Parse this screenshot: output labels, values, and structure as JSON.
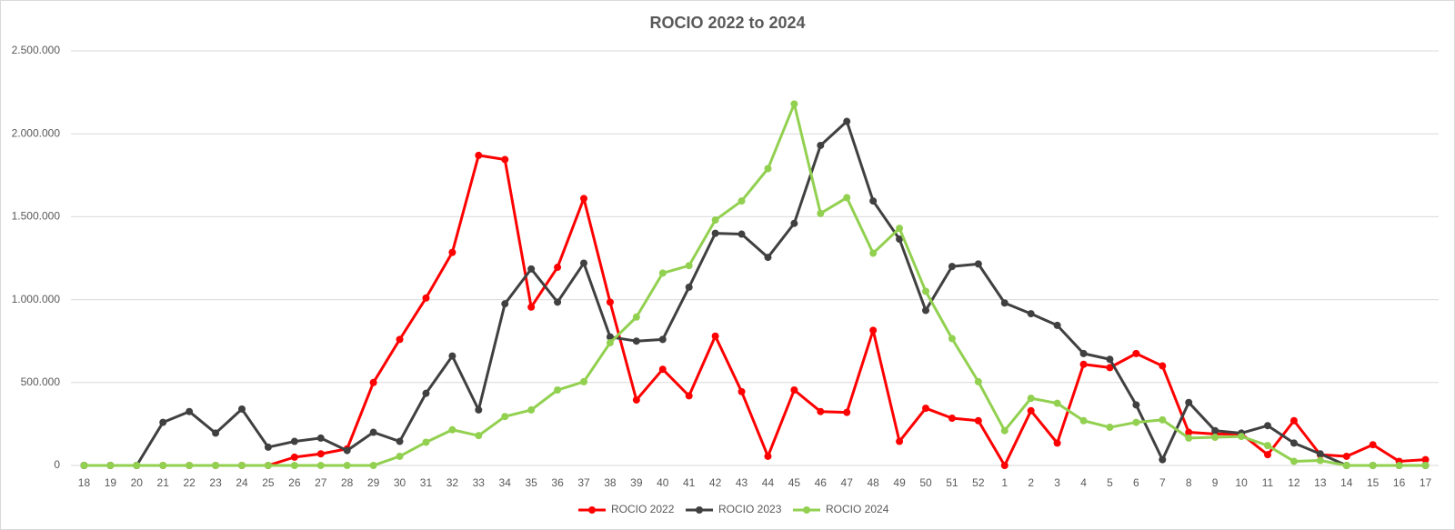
{
  "chart_data": {
    "type": "line",
    "title": "ROCIO 2022 to 2024",
    "categories": [
      "18",
      "19",
      "20",
      "21",
      "22",
      "23",
      "24",
      "25",
      "26",
      "27",
      "28",
      "29",
      "30",
      "31",
      "32",
      "33",
      "34",
      "35",
      "36",
      "37",
      "38",
      "39",
      "40",
      "41",
      "42",
      "43",
      "44",
      "45",
      "46",
      "47",
      "48",
      "49",
      "50",
      "51",
      "52",
      "1",
      "2",
      "3",
      "4",
      "5",
      "6",
      "7",
      "8",
      "9",
      "10",
      "11",
      "12",
      "13",
      "14",
      "15",
      "16",
      "17"
    ],
    "series": [
      {
        "name": "ROCIO 2022",
        "color": "#ff0000",
        "values": [
          0,
          0,
          0,
          0,
          0,
          0,
          0,
          0,
          50000,
          70000,
          100000,
          500000,
          760000,
          1010000,
          1285000,
          1870000,
          1845000,
          955000,
          1195000,
          1610000,
          985000,
          395000,
          580000,
          420000,
          780000,
          445000,
          55000,
          455000,
          325000,
          320000,
          815000,
          145000,
          345000,
          285000,
          270000,
          0,
          330000,
          135000,
          610000,
          590000,
          675000,
          600000,
          200000,
          190000,
          190000,
          65000,
          270000,
          65000,
          55000,
          125000,
          25000,
          35000
        ]
      },
      {
        "name": "ROCIO 2023",
        "color": "#404040",
        "values": [
          0,
          0,
          0,
          260000,
          325000,
          195000,
          340000,
          110000,
          145000,
          165000,
          90000,
          200000,
          145000,
          435000,
          660000,
          335000,
          975000,
          1185000,
          985000,
          1220000,
          775000,
          750000,
          760000,
          1075000,
          1400000,
          1395000,
          1255000,
          1460000,
          1930000,
          2075000,
          1595000,
          1365000,
          935000,
          1200000,
          1215000,
          980000,
          915000,
          845000,
          675000,
          640000,
          365000,
          35000,
          380000,
          210000,
          195000,
          240000,
          135000,
          70000,
          0,
          0,
          0,
          0
        ]
      },
      {
        "name": "ROCIO 2024",
        "color": "#92d050",
        "values": [
          0,
          0,
          0,
          0,
          0,
          0,
          0,
          0,
          0,
          0,
          0,
          0,
          55000,
          140000,
          215000,
          180000,
          295000,
          335000,
          455000,
          505000,
          740000,
          895000,
          1160000,
          1205000,
          1480000,
          1595000,
          1790000,
          2180000,
          1520000,
          1615000,
          1280000,
          1430000,
          1050000,
          765000,
          505000,
          210000,
          405000,
          375000,
          270000,
          230000,
          260000,
          275000,
          165000,
          170000,
          175000,
          120000,
          25000,
          30000,
          0,
          0,
          0,
          0
        ]
      }
    ],
    "ylim": [
      0,
      2500000
    ],
    "yticks": [
      0,
      {
        "value": 500000,
        "label": "500.000"
      },
      {
        "value": 1000000,
        "label": "1.000.000"
      },
      {
        "value": 1500000,
        "label": "1.500.000"
      },
      {
        "value": 2000000,
        "label": "2.000.000"
      },
      {
        "value": 2500000,
        "label": "2.500.000"
      }
    ],
    "grid": true,
    "legend": "bottom"
  }
}
